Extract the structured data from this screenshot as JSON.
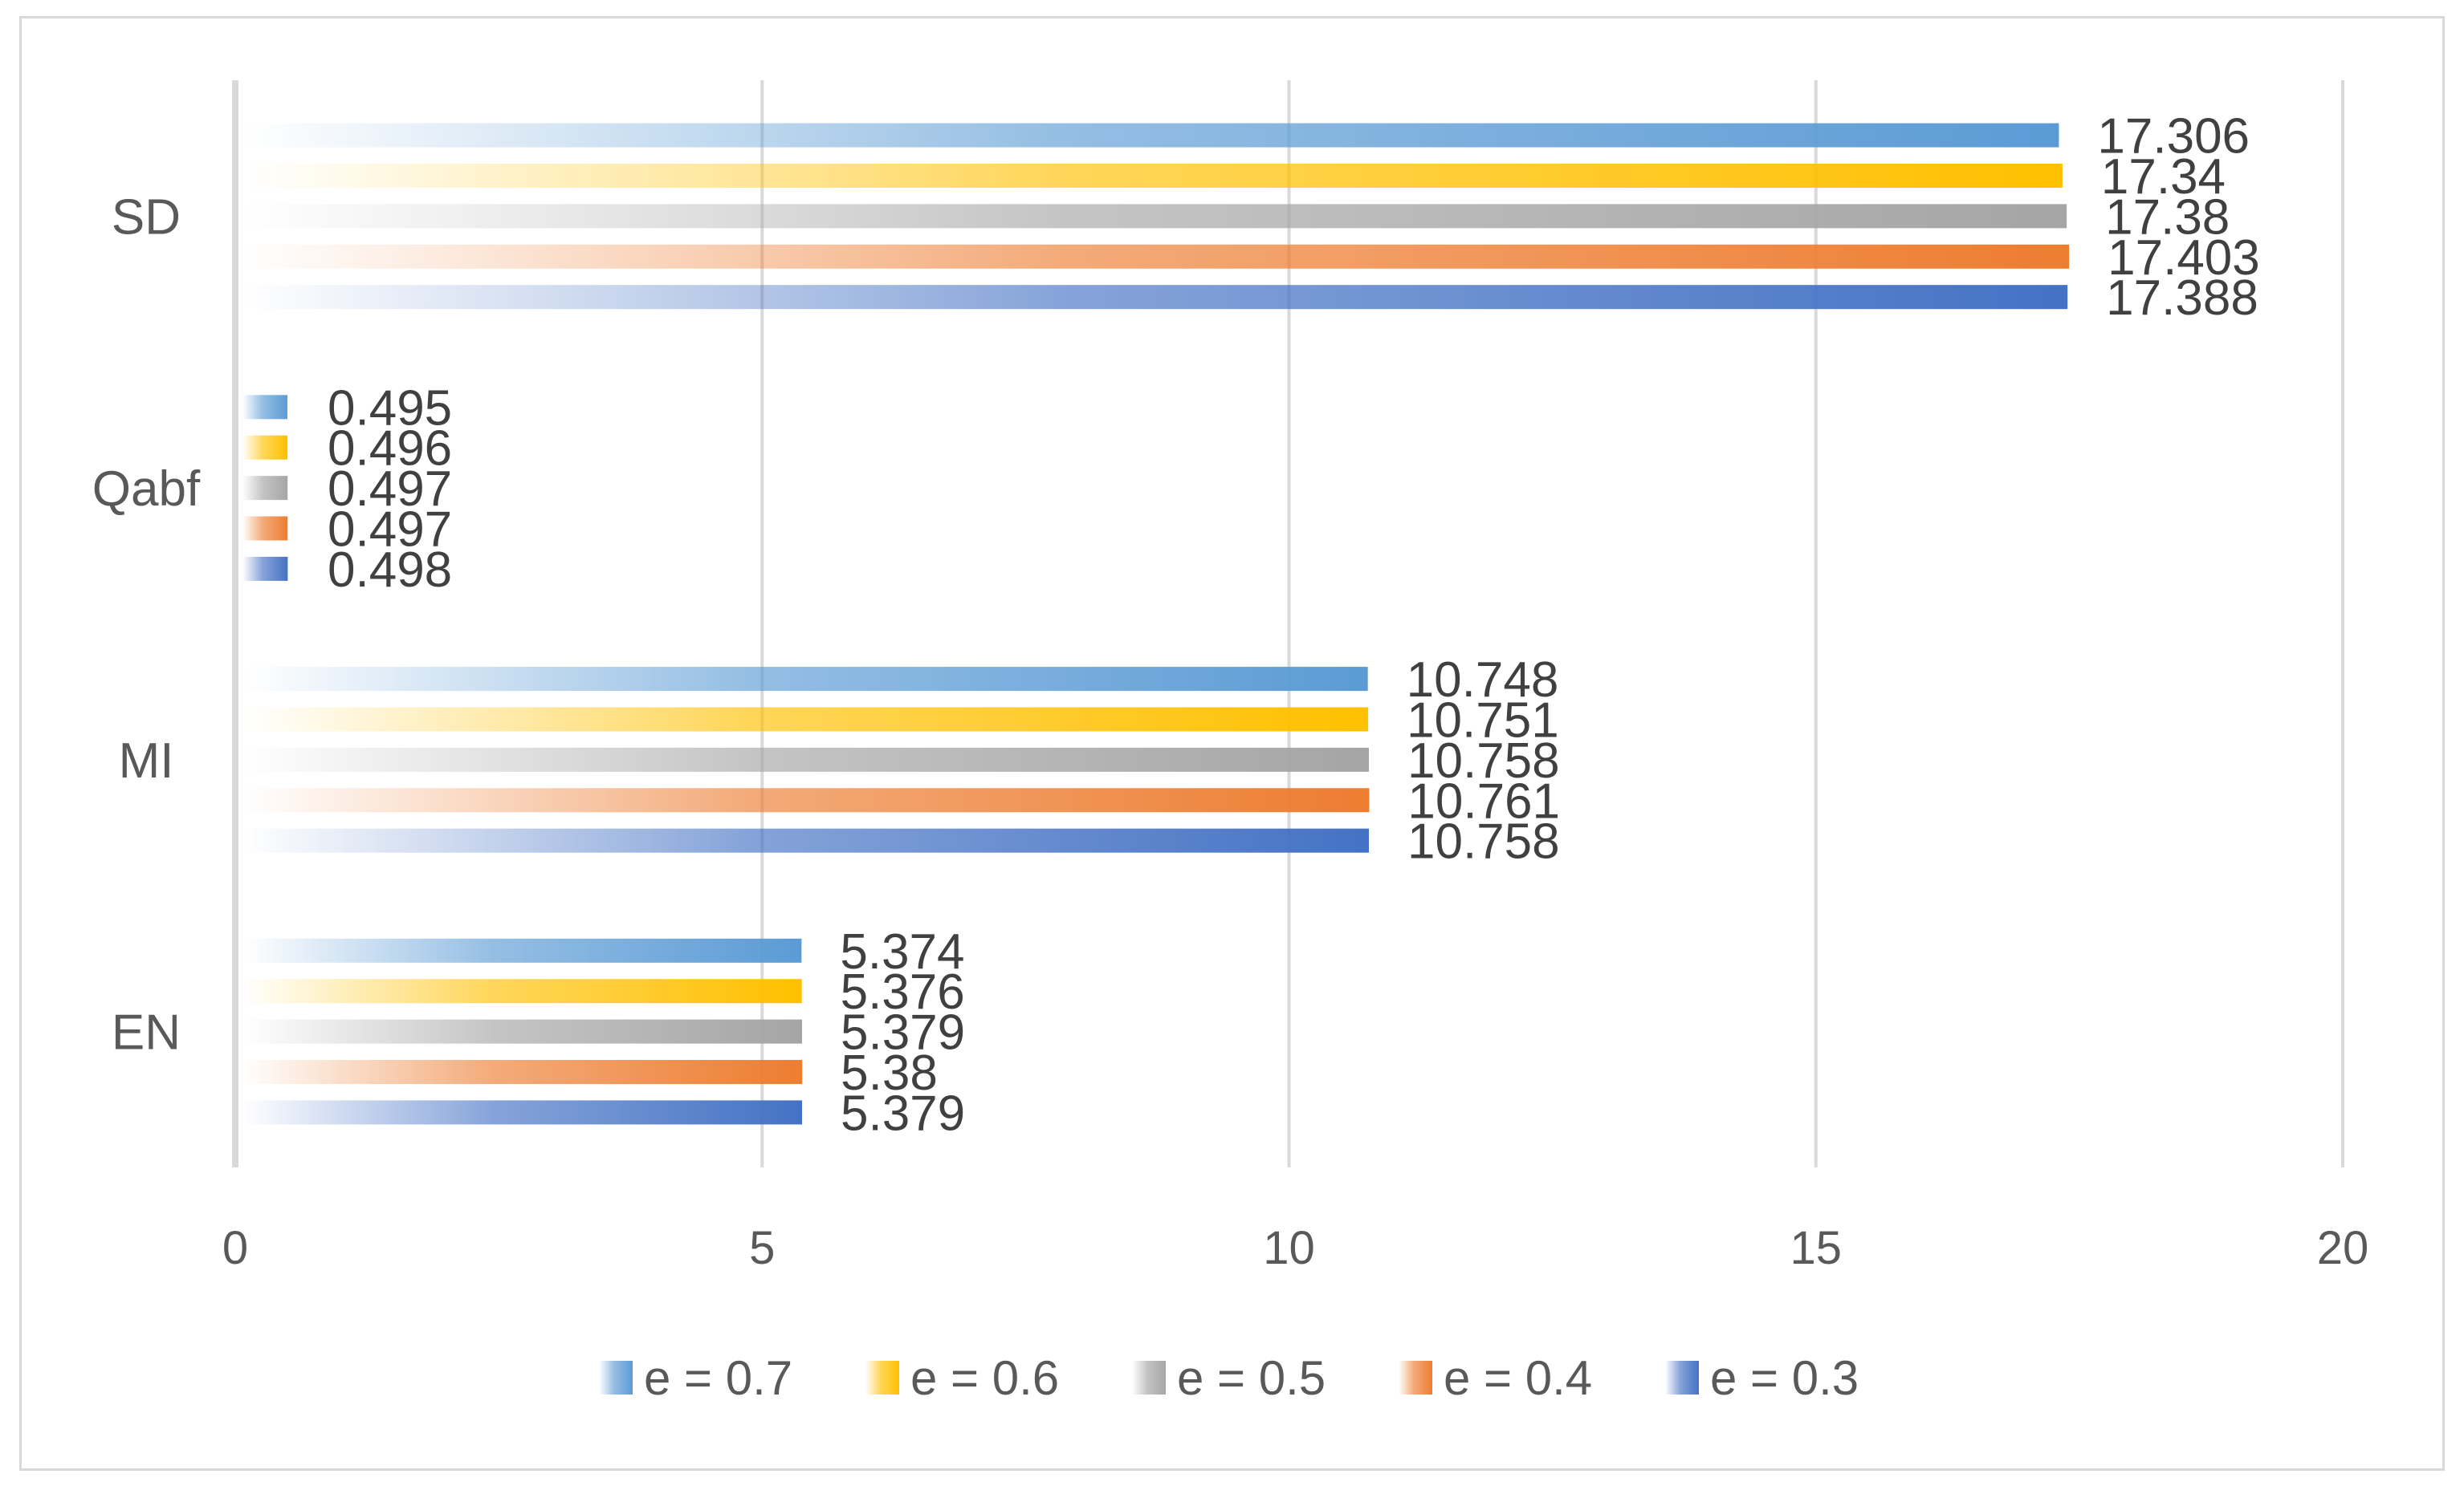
{
  "chart_data": {
    "type": "bar",
    "orientation": "horizontal",
    "categories": [
      "EN",
      "MI",
      "Qabf",
      "SD"
    ],
    "series": [
      {
        "name": "e = 0.7",
        "color": "#5B9BD5",
        "values": [
          5.374,
          10.748,
          0.495,
          17.306
        ],
        "labels": [
          "5.374",
          "10.748",
          "0.495",
          "17.306"
        ]
      },
      {
        "name": "e = 0.6",
        "color": "#FFC000",
        "values": [
          5.376,
          10.751,
          0.496,
          17.34
        ],
        "labels": [
          "5.376",
          "10.751",
          "0.496",
          "17.34"
        ]
      },
      {
        "name": "e = 0.5",
        "color": "#A5A5A5",
        "values": [
          5.379,
          10.758,
          0.497,
          17.38
        ],
        "labels": [
          "5.379",
          "10.758",
          "0.497",
          "17.38"
        ]
      },
      {
        "name": "e = 0.4",
        "color": "#ED7D31",
        "values": [
          5.38,
          10.761,
          0.497,
          17.403
        ],
        "labels": [
          "5.38",
          "10.761",
          "0.497",
          "17.403"
        ]
      },
      {
        "name": "e = 0.3",
        "color": "#4472C4",
        "values": [
          5.379,
          10.758,
          0.498,
          17.388
        ],
        "labels": [
          "5.379",
          "10.758",
          "0.498",
          "17.388"
        ]
      }
    ],
    "xlim": [
      0,
      20
    ],
    "xticks": [
      0,
      5,
      10,
      15,
      20
    ],
    "xtick_labels": [
      "0",
      "5",
      "10",
      "15",
      "20"
    ],
    "grid": true,
    "legend_position": "bottom",
    "title": "",
    "xlabel": "",
    "ylabel": ""
  }
}
